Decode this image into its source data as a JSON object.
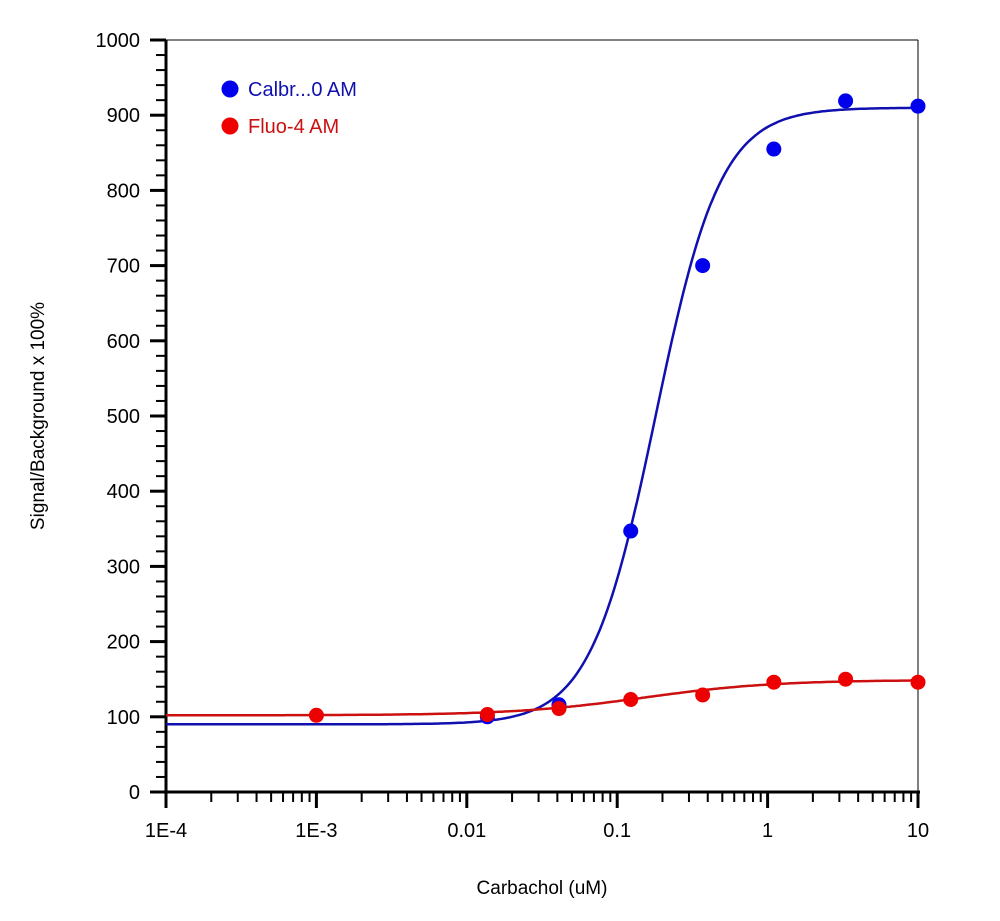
{
  "chart_data": {
    "type": "scatter",
    "title": "",
    "xlabel": "Carbachol (uM)",
    "ylabel": "Signal/Background x 100%",
    "xscale": "log",
    "xlim": [
      0.0001,
      10
    ],
    "ylim": [
      0,
      1000
    ],
    "x_ticks": [
      0.0001,
      0.001,
      0.01,
      0.1,
      1,
      10
    ],
    "x_tick_labels": [
      "1E-4",
      "1E-3",
      "0.01",
      "0.1",
      "1",
      "10"
    ],
    "y_ticks": [
      0,
      100,
      200,
      300,
      400,
      500,
      600,
      700,
      800,
      900,
      1000
    ],
    "y_tick_labels": [
      "0",
      "100",
      "200",
      "300",
      "400",
      "500",
      "600",
      "700",
      "800",
      "900",
      "1000"
    ],
    "grid": false,
    "legend_position": "top-left",
    "series": [
      {
        "name": "Calbr...0 AM",
        "color": "#0000ee",
        "line_color": "#1010b0",
        "x": [
          0.0137,
          0.041,
          0.123,
          0.37,
          1.1,
          3.3,
          10
        ],
        "y": [
          100,
          116,
          347,
          700,
          855,
          919,
          912
        ],
        "fit": {
          "model": "4PL",
          "bottom": 90,
          "top": 910,
          "ec50": 0.18,
          "hill": 2.0
        }
      },
      {
        "name": "Fluo-4 AM",
        "color": "#ee0000",
        "line_color": "#cc1010",
        "x": [
          0.001,
          0.0137,
          0.041,
          0.123,
          0.37,
          1.1,
          3.3,
          10
        ],
        "y": [
          102,
          103,
          111,
          123,
          129,
          146,
          150,
          146
        ],
        "fit": {
          "model": "4PL",
          "bottom": 102,
          "top": 149,
          "ec50": 0.15,
          "hill": 1.0
        }
      }
    ]
  }
}
